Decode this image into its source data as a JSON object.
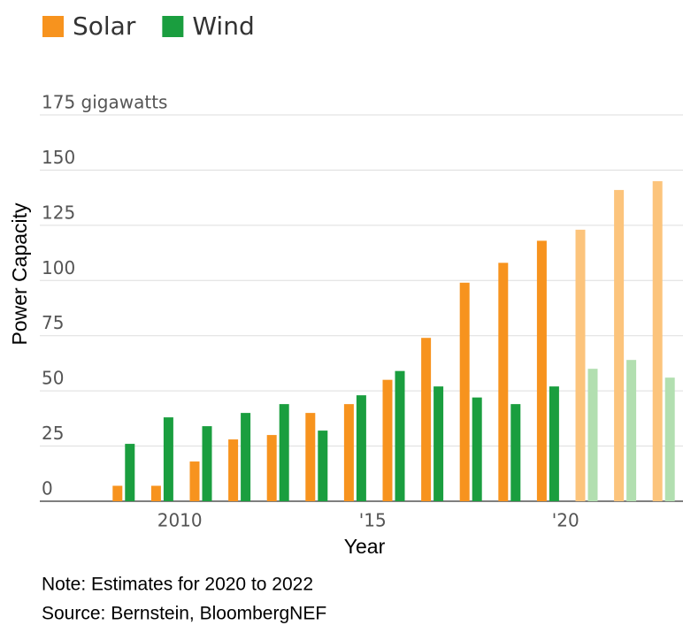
{
  "chart_data": {
    "type": "bar",
    "categories": [
      null,
      null,
      "2010",
      null,
      null,
      null,
      null,
      "'15",
      null,
      null,
      null,
      null,
      "'20",
      null,
      null
    ],
    "series": [
      {
        "name": "Solar",
        "color": "#f7931e",
        "values": [
          7,
          7,
          18,
          28,
          30,
          40,
          44,
          55,
          74,
          99,
          108,
          118,
          123,
          141,
          145
        ],
        "colors": [
          "#f7931e",
          "#f7931e",
          "#f7931e",
          "#f7931e",
          "#f7931e",
          "#f7931e",
          "#f7931e",
          "#f7931e",
          "#f7931e",
          "#f7931e",
          "#f7931e",
          "#f7931e",
          "#fcc47c",
          "#fcc47c",
          "#fcc47c"
        ]
      },
      {
        "name": "Wind",
        "color": "#1a9e3f",
        "values": [
          26,
          38,
          34,
          40,
          44,
          32,
          48,
          59,
          52,
          47,
          44,
          52,
          60,
          64,
          56
        ],
        "colors": [
          "#1a9e3f",
          "#1a9e3f",
          "#1a9e3f",
          "#1a9e3f",
          "#1a9e3f",
          "#1a9e3f",
          "#1a9e3f",
          "#1a9e3f",
          "#1a9e3f",
          "#1a9e3f",
          "#1a9e3f",
          "#1a9e3f",
          "#b2dfb0",
          "#b2dfb0",
          "#b2dfb0"
        ]
      }
    ],
    "ylim": [
      0,
      175
    ],
    "yticks": [
      0,
      25,
      50,
      75,
      100,
      125,
      150,
      {
        "value": 175,
        "label": "175 gigawatts"
      }
    ],
    "grid": true,
    "y_label": "Power Capacity",
    "x_label": "Year",
    "notes": [
      "Note: Estimates for 2020 to 2022",
      "Source: Bernstein, BloombergNEF"
    ]
  }
}
